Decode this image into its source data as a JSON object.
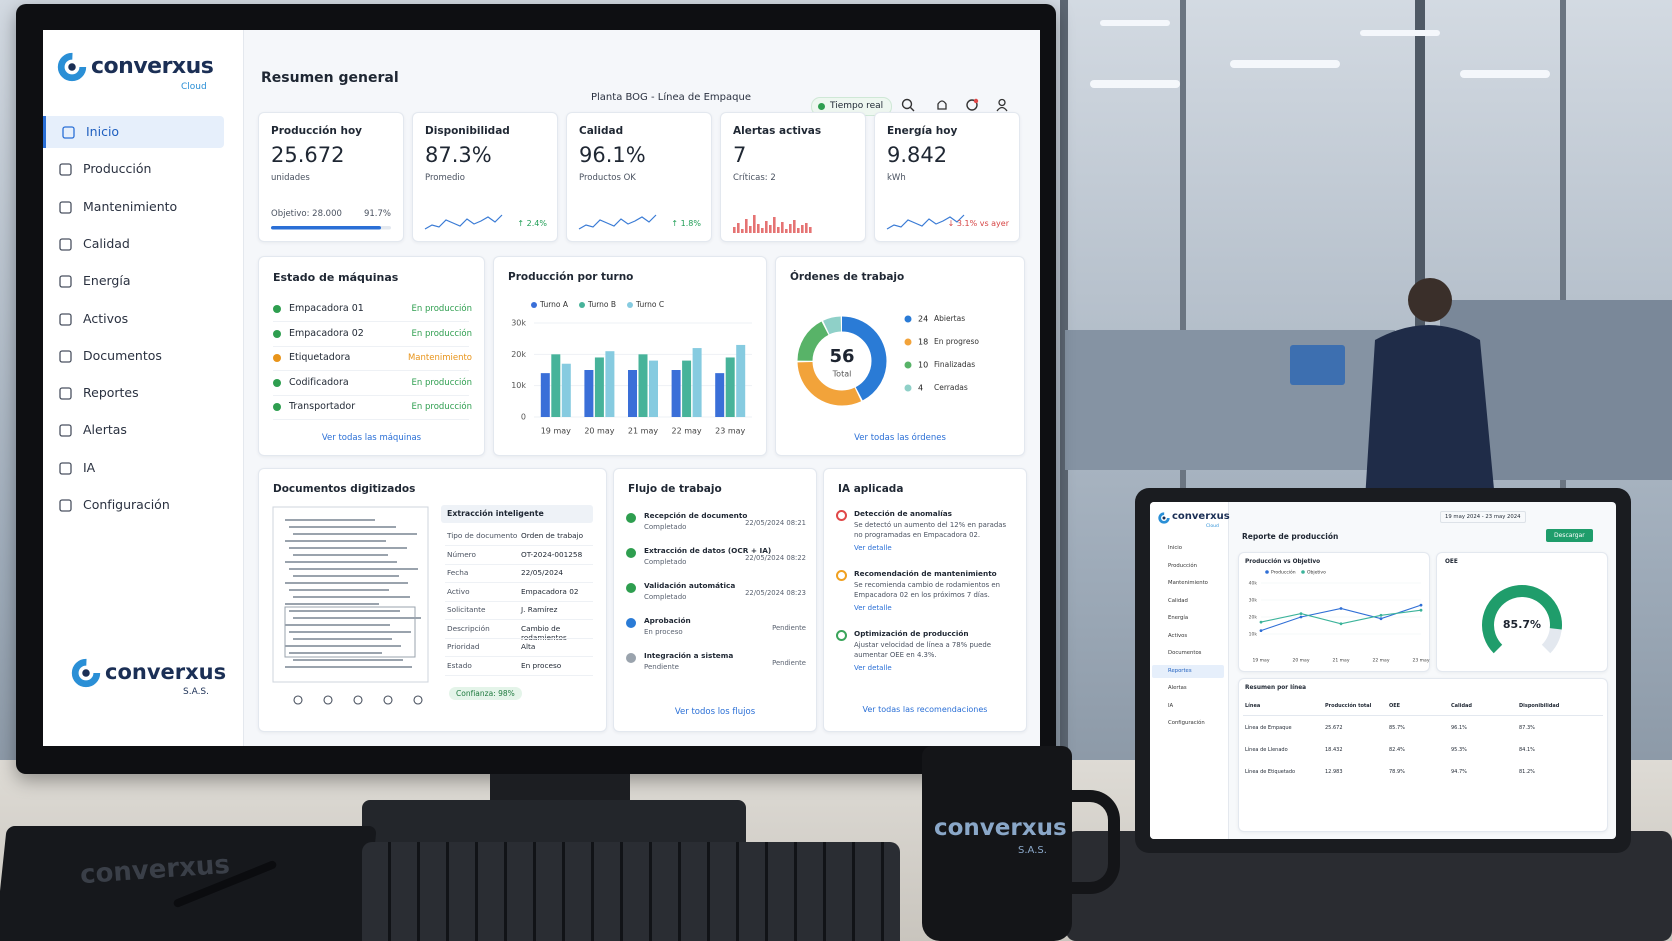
{
  "monitor": {
    "brand": {
      "name": "converxus",
      "sub": "Cloud"
    },
    "nav": [
      "Inicio",
      "Producción",
      "Mantenimiento",
      "Calidad",
      "Energía",
      "Activos",
      "Documentos",
      "Reportes",
      "Alertas",
      "IA",
      "Configuración"
    ],
    "footer_brand": {
      "name": "converxus",
      "sub": "S.A.S."
    },
    "header": {
      "title": "Resumen general",
      "plant": "Planta BOG - Línea de Empaque",
      "live": "Tiempo real"
    },
    "kpis": [
      {
        "title": "Producción hoy",
        "value": "25.672",
        "unit": "unidades",
        "target": "Objetivo: 28.000",
        "progress": {
          "value": 91.7,
          "label": "91.7%"
        }
      },
      {
        "title": "Disponibilidad",
        "value": "87.3%",
        "unit": "Promedio",
        "delta": "↑ 2.4%",
        "delta_color": "#1f9d55"
      },
      {
        "title": "Calidad",
        "value": "96.1%",
        "unit": "Productos OK",
        "delta": "↑ 1.8%",
        "delta_color": "#1f9d55"
      },
      {
        "title": "Alertas activas",
        "value": "7",
        "unit": "Críticas: 2"
      },
      {
        "title": "Energía hoy",
        "value": "9.842",
        "unit": "kWh",
        "delta": "↓ 3.1% vs ayer",
        "delta_color": "#d64545"
      }
    ],
    "machines": {
      "title": "Estado de máquinas",
      "link": "Ver todas las máquinas",
      "items": [
        {
          "name": "Empacadora 01",
          "status": "En producción",
          "color": "#2e9e4f"
        },
        {
          "name": "Empacadora 02",
          "status": "En producción",
          "color": "#2e9e4f"
        },
        {
          "name": "Etiquetadora",
          "status": "Mantenimiento",
          "color": "#e8941a"
        },
        {
          "name": "Codificadora",
          "status": "En producción",
          "color": "#2e9e4f"
        },
        {
          "name": "Transportador",
          "status": "En producción",
          "color": "#2e9e4f"
        }
      ]
    },
    "shift_chart": {
      "type": "bar",
      "title": "Producción por turno",
      "categories": [
        "19 may",
        "20 may",
        "21 may",
        "22 may",
        "23 may"
      ],
      "series": [
        {
          "name": "Turno A",
          "color": "#3a6fd8",
          "values": [
            14000,
            15000,
            15000,
            15000,
            14000
          ]
        },
        {
          "name": "Turno B",
          "color": "#47b39a",
          "values": [
            20000,
            19000,
            20000,
            18000,
            19000
          ]
        },
        {
          "name": "Turno C",
          "color": "#86cbe0",
          "values": [
            17000,
            21000,
            18000,
            22000,
            23000
          ]
        }
      ],
      "ylim": [
        0,
        30000
      ],
      "yticks": [
        0,
        {
          "value": 10000,
          "label": "10k"
        },
        {
          "value": 20000,
          "label": "20k"
        },
        {
          "value": 30000,
          "label": "30k"
        }
      ],
      "grid": true
    },
    "orders_chart": {
      "type": "donut",
      "title": "Órdenes de trabajo",
      "categories": [
        "Abiertas",
        "En progreso",
        "Finalizadas",
        "Cerradas"
      ],
      "values": [
        24,
        18,
        10,
        4
      ],
      "colors": [
        "#2a7bd6",
        "#f2a33a",
        "#58b368",
        "#8fd0c8"
      ],
      "total": 56,
      "total_label": "Total",
      "link": "Ver todas las órdenes"
    },
    "documents": {
      "title": "Documentos digitizados",
      "panel_title": "Extracción inteligente",
      "fields": [
        [
          "Tipo de documento",
          "Orden de trabajo"
        ],
        [
          "Número",
          "OT-2024-001258"
        ],
        [
          "Fecha",
          "22/05/2024"
        ],
        [
          "Activo",
          "Empacadora 02"
        ],
        [
          "Solicitante",
          "J. Ramírez"
        ],
        [
          "Descripción",
          "Cambio de rodamientos"
        ],
        [
          "Prioridad",
          "Alta"
        ],
        [
          "Estado",
          "En proceso"
        ]
      ],
      "confidence": "Confianza: 98%"
    },
    "workflow": {
      "title": "Flujo de trabajo",
      "link": "Ver todos los flujos",
      "steps": [
        {
          "name": "Recepción de documento",
          "status": "Completado",
          "time": "22/05/2024 08:21",
          "color": "#2e9e4f"
        },
        {
          "name": "Extracción de datos (OCR + IA)",
          "status": "Completado",
          "time": "22/05/2024 08:22",
          "color": "#2e9e4f"
        },
        {
          "name": "Validación automática",
          "status": "Completado",
          "time": "22/05/2024 08:23",
          "color": "#2e9e4f"
        },
        {
          "name": "Aprobación",
          "status": "En proceso",
          "time": "Pendiente",
          "color": "#2a7bd6"
        },
        {
          "name": "Integración a sistema",
          "status": "Pendiente",
          "time": "Pendiente",
          "color": "#9aa3ad"
        }
      ]
    },
    "ai": {
      "title": "IA aplicada",
      "link": "Ver todas las recomendaciones",
      "items": [
        {
          "title": "Detección de anomalías",
          "text": "Se detectó un aumento del 12% en paradas no programadas en Empacadora 02.",
          "link": "Ver detalle",
          "color": "#e04848"
        },
        {
          "title": "Recomendación de mantenimiento",
          "text": "Se recomienda cambio de rodamientos en Empacadora 02 en los próximos 7 días.",
          "link": "Ver detalle",
          "color": "#f0a020"
        },
        {
          "title": "Optimización de producción",
          "text": "Ajustar velocidad de línea a 78% puede aumentar OEE en 4.3%.",
          "link": "Ver detalle",
          "color": "#3aa45a"
        }
      ]
    }
  },
  "tablet": {
    "brand": {
      "name": "converxus",
      "sub": "Cloud"
    },
    "date_range": "19 may 2024 - 23 may 2024",
    "title": "Reporte de producción",
    "download": "Descargar",
    "nav": [
      "Inicio",
      "Producción",
      "Mantenimiento",
      "Calidad",
      "Energía",
      "Activos",
      "Documentos",
      "Reportes",
      "Alertas",
      "IA",
      "Configuración"
    ],
    "line_chart": {
      "type": "line",
      "title": "Producción vs Objetivo",
      "categories": [
        "19 may",
        "20 may",
        "21 may",
        "22 may",
        "23 may"
      ],
      "series": [
        {
          "name": "Producción",
          "color": "#2f6fd6",
          "values": [
            12000,
            20000,
            25000,
            19000,
            27000
          ]
        },
        {
          "name": "Objetivo",
          "color": "#3bb39a",
          "values": [
            17000,
            22000,
            16000,
            21000,
            24000
          ]
        }
      ],
      "ylim": [
        0,
        40000
      ],
      "yticks": [
        {
          "value": 10000,
          "label": "10k"
        },
        {
          "value": 20000,
          "label": "20k"
        },
        {
          "value": 30000,
          "label": "30k"
        },
        {
          "value": 40000,
          "label": "40k"
        }
      ],
      "grid": true
    },
    "gauge": {
      "type": "gauge",
      "title": "OEE",
      "value": 85.7,
      "value_label": "85.7%",
      "ylim": [
        0,
        100
      ],
      "color": "#1f9d6b"
    },
    "table": {
      "title": "Resumen por línea",
      "header": [
        "Línea",
        "Producción total",
        "OEE",
        "Calidad",
        "Disponibilidad"
      ],
      "rows": [
        [
          "Línea de Empaque",
          "25.672",
          "85.7%",
          "96.1%",
          "87.3%"
        ],
        [
          "Línea de Llenado",
          "18.432",
          "82.4%",
          "95.3%",
          "84.1%"
        ],
        [
          "Línea de Etiquetado",
          "12.983",
          "78.9%",
          "94.7%",
          "81.2%"
        ]
      ]
    }
  },
  "decor": {
    "mug": {
      "name": "converxus",
      "sub": "S.A.S."
    },
    "notebook": "converxus"
  }
}
